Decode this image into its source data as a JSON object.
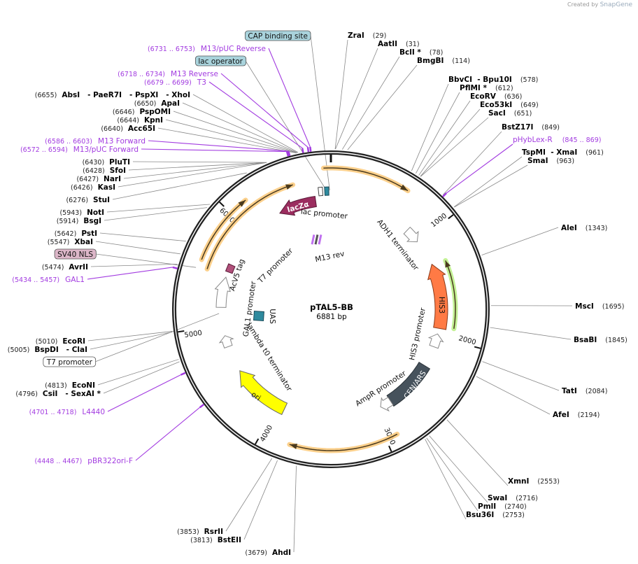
{
  "credit": {
    "prefix": "Created by",
    "brand": "SnapGene"
  },
  "plasmid": {
    "name": "pTAL5-BB",
    "length": "6881 bp"
  },
  "ticks": [
    "1000",
    "2000",
    "3000",
    "4000",
    "5000",
    "6000"
  ],
  "features": {
    "lacZa": "lacZα",
    "lac_promoter": "lac promoter",
    "adh1_terminator": "ADH1 terminator",
    "his3": "HIS3",
    "his3_promoter": "HIS3 promoter",
    "cen_ars": "CEN/ARS",
    "ampr_promoter": "AmpR promoter",
    "ori": "ori",
    "lambda_t0": "lambda t0 terminator",
    "gal1_promoter": "GAL1 promoter",
    "acv5_tag": "AcV5 tag",
    "uas": "UAS",
    "t7_promoter": "T7 promoter",
    "m13_rev": "M13 rev"
  },
  "colors": {
    "primer": "#a23be0",
    "lacZa": "#9b2d5f",
    "his3": "#ff7a45",
    "cen_ars": "#46525c",
    "ori": "#ffff00",
    "teal": "#2e8a9e",
    "orange_hl": "#fbcb80",
    "green_hl": "#bdf08a"
  },
  "labels": [
    {
      "type": "enzyme",
      "name": "ZraI",
      "site": "(29)"
    },
    {
      "type": "enzyme",
      "name": "AatII",
      "site": "(31)"
    },
    {
      "type": "enzyme",
      "name": "BclI *",
      "site": "(78)"
    },
    {
      "type": "enzyme",
      "name": "BmgBI",
      "site": "(114)"
    },
    {
      "type": "enzyme",
      "name": "BbvCI  - Bpu10I",
      "site": "(578)"
    },
    {
      "type": "enzyme",
      "name": "PflMI *",
      "site": "(612)"
    },
    {
      "type": "enzyme",
      "name": "EcoRV",
      "site": "(636)"
    },
    {
      "type": "enzyme",
      "name": "Eco53kI",
      "site": "(649)"
    },
    {
      "type": "enzyme",
      "name": "SacI",
      "site": "(651)"
    },
    {
      "type": "enzyme",
      "name": "BstZ17I",
      "site": "(849)"
    },
    {
      "type": "primer",
      "name": "pHybLex-R",
      "site": "(845 .. 869)"
    },
    {
      "type": "enzyme",
      "name": "TspMI  - XmaI",
      "site": "(961)"
    },
    {
      "type": "enzyme",
      "name": "SmaI",
      "site": "(963)"
    },
    {
      "type": "enzyme",
      "name": "AleI",
      "site": "(1343)"
    },
    {
      "type": "enzyme",
      "name": "MscI",
      "site": "(1695)"
    },
    {
      "type": "enzyme",
      "name": "BsaBI",
      "site": "(1845)"
    },
    {
      "type": "enzyme",
      "name": "TatI",
      "site": "(2084)"
    },
    {
      "type": "enzyme",
      "name": "AfeI",
      "site": "(2194)"
    },
    {
      "type": "enzyme",
      "name": "XmnI",
      "site": "(2553)"
    },
    {
      "type": "enzyme",
      "name": "SwaI",
      "site": "(2716)"
    },
    {
      "type": "enzyme",
      "name": "PmlI",
      "site": "(2740)"
    },
    {
      "type": "enzyme",
      "name": "Bsu36I",
      "site": "(2753)"
    },
    {
      "type": "box",
      "name": "CAP binding site",
      "color": "#a9d3dc"
    },
    {
      "type": "primer",
      "name": "M13/pUC Reverse",
      "site": "(6731 .. 6753)"
    },
    {
      "type": "box",
      "name": "lac operator",
      "color": "#a9d3dc"
    },
    {
      "type": "primer",
      "name": "M13 Reverse",
      "site": "(6718 .. 6734)"
    },
    {
      "type": "primer",
      "name": "T3",
      "site": "(6679 .. 6699)"
    },
    {
      "type": "enzyme",
      "name": "AbsI   - PaeR7I   - PspXI   - XhoI",
      "site": "(6655)"
    },
    {
      "type": "enzyme",
      "name": "ApaI",
      "site": "(6650)"
    },
    {
      "type": "enzyme",
      "name": "PspOMI",
      "site": "(6646)"
    },
    {
      "type": "enzyme",
      "name": "KpnI",
      "site": "(6644)"
    },
    {
      "type": "enzyme",
      "name": "Acc65I",
      "site": "(6640)"
    },
    {
      "type": "primer",
      "name": "M13 Forward",
      "site": "(6586 .. 6603)"
    },
    {
      "type": "primer",
      "name": "M13/pUC Forward",
      "site": "(6572 .. 6594)"
    },
    {
      "type": "enzyme",
      "name": "PluTI",
      "site": "(6430)"
    },
    {
      "type": "enzyme",
      "name": "SfoI",
      "site": "(6428)"
    },
    {
      "type": "enzyme",
      "name": "NarI",
      "site": "(6427)"
    },
    {
      "type": "enzyme",
      "name": "KasI",
      "site": "(6426)"
    },
    {
      "type": "enzyme",
      "name": "StuI",
      "site": "(6276)"
    },
    {
      "type": "enzyme",
      "name": "NotI",
      "site": "(5943)"
    },
    {
      "type": "enzyme",
      "name": "BsgI",
      "site": "(5914)"
    },
    {
      "type": "enzyme",
      "name": "PstI",
      "site": "(5642)"
    },
    {
      "type": "enzyme",
      "name": "XbaI",
      "site": "(5547)"
    },
    {
      "type": "box",
      "name": "SV40 NLS",
      "color": "#dcb6c8"
    },
    {
      "type": "enzyme",
      "name": "AvrII",
      "site": "(5474)"
    },
    {
      "type": "primer",
      "name": "GAL1",
      "site": "(5434 .. 5457)"
    },
    {
      "type": "enzyme",
      "name": "EcoRI",
      "site": "(5010)"
    },
    {
      "type": "enzyme",
      "name": "BspDI   - ClaI",
      "site": "(5005)"
    },
    {
      "type": "box",
      "name": "T7 promoter",
      "color": "#ffffff"
    },
    {
      "type": "enzyme",
      "name": "EcoNI",
      "site": "(4813)"
    },
    {
      "type": "enzyme",
      "name": "CsiI   - SexAI *",
      "site": "(4796)"
    },
    {
      "type": "primer",
      "name": "L4440",
      "site": "(4701 .. 4718)"
    },
    {
      "type": "primer",
      "name": "pBR322ori-F",
      "site": "(4448 .. 4467)"
    },
    {
      "type": "enzyme",
      "name": "RsrII",
      "site": "(3853)"
    },
    {
      "type": "enzyme",
      "name": "BstEII",
      "site": "(3813)"
    },
    {
      "type": "enzyme",
      "name": "AhdI",
      "site": "(3679)"
    }
  ]
}
